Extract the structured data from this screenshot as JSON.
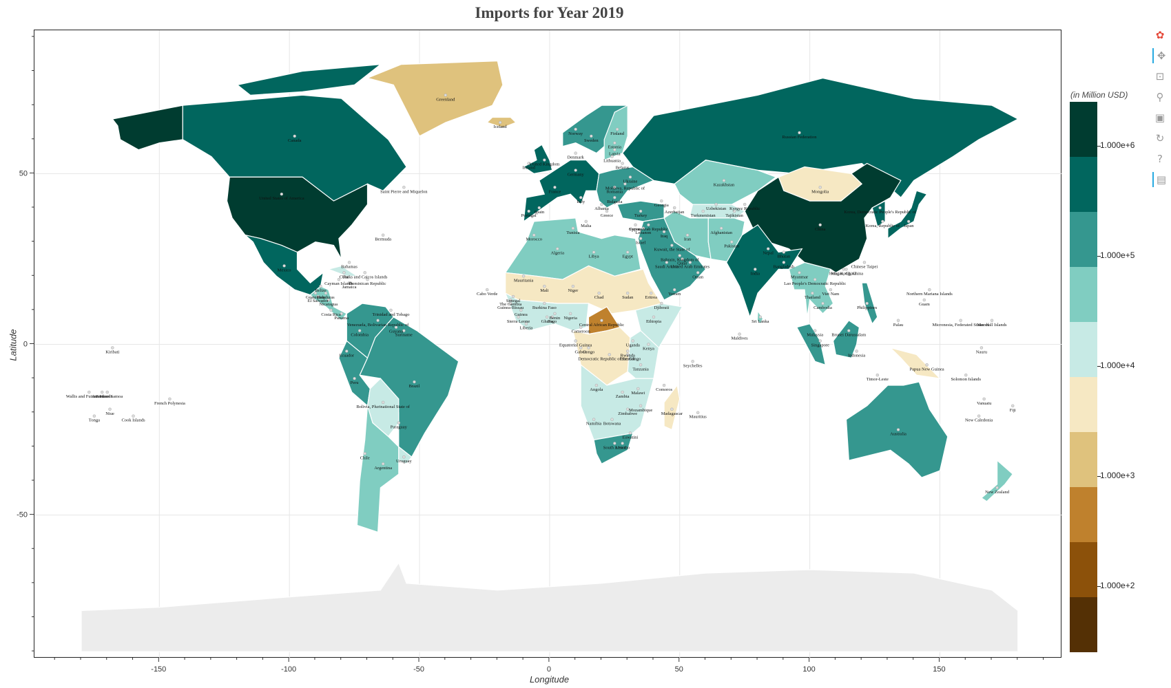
{
  "title": "Imports for Year 2019",
  "colorbar": {
    "title": "(in Million USD)",
    "colors": [
      "#003c30",
      "#01665e",
      "#35978f",
      "#80cdc1",
      "#c7eae5",
      "#f6e8c3",
      "#dfc27d",
      "#bf812d",
      "#8c510a",
      "#543005"
    ],
    "ticks": [
      "1.000e+6",
      "1.000e+5",
      "1.000e+4",
      "1.000e+3",
      "1.000e+2"
    ]
  },
  "toolbar": {
    "tools": [
      {
        "name": "bokeh-logo-icon",
        "glyph": "✿"
      },
      {
        "name": "pan-icon",
        "glyph": "✥"
      },
      {
        "name": "box-zoom-icon",
        "glyph": "⊡"
      },
      {
        "name": "wheel-zoom-icon",
        "glyph": "⚲"
      },
      {
        "name": "save-icon",
        "glyph": "▣"
      },
      {
        "name": "reset-icon",
        "glyph": "↻"
      },
      {
        "name": "help-icon",
        "glyph": "?"
      },
      {
        "name": "hover-icon",
        "glyph": "▤"
      }
    ]
  },
  "chart_data": {
    "type": "map",
    "title": "Imports for Year 2019",
    "xlabel": "Longitude",
    "ylabel": "Latitude",
    "xlim": [
      -198,
      197
    ],
    "ylim": [
      -92,
      92
    ],
    "x_ticks": [
      -150,
      -100,
      -50,
      0,
      50,
      100,
      150
    ],
    "y_ticks": [
      50,
      0,
      -50
    ],
    "x_tick_labels": [
      "-150",
      "-100",
      "-50",
      "0",
      "50",
      "100",
      "150"
    ],
    "y_tick_labels": [
      "50",
      "0",
      "-50"
    ],
    "color_scale": "log",
    "grid": true,
    "countries": [
      {
        "name": "Greenland",
        "lon": -40,
        "lat": 73,
        "bin": 6
      },
      {
        "name": "Iceland",
        "lon": -19,
        "lat": 65,
        "bin": 6
      },
      {
        "name": "Canada",
        "lon": -98,
        "lat": 61,
        "bin": 1
      },
      {
        "name": "United States of America",
        "lon": -103,
        "lat": 44,
        "bin": 0
      },
      {
        "name": "Saint Pierre and Miquelon",
        "lon": -56,
        "lat": 46,
        "bin": 5
      },
      {
        "name": "Bermuda",
        "lon": -64,
        "lat": 32,
        "bin": 5
      },
      {
        "name": "Mexico",
        "lon": -102,
        "lat": 23,
        "bin": 1
      },
      {
        "name": "Bahamas",
        "lon": -77,
        "lat": 24,
        "bin": 5
      },
      {
        "name": "Turks and Caicos Islands",
        "lon": -71,
        "lat": 21,
        "bin": 5
      },
      {
        "name": "Cuba",
        "lon": -79,
        "lat": 21,
        "bin": 4
      },
      {
        "name": "Cayman Islands",
        "lon": -81,
        "lat": 19,
        "bin": 5
      },
      {
        "name": "Jamaica",
        "lon": -77,
        "lat": 18,
        "bin": 4
      },
      {
        "name": "Dominican Republic",
        "lon": -70,
        "lat": 19,
        "bin": 3
      },
      {
        "name": "Belize",
        "lon": -88,
        "lat": 17,
        "bin": 5
      },
      {
        "name": "Guatemala",
        "lon": -90,
        "lat": 15,
        "bin": 3
      },
      {
        "name": "Honduras",
        "lon": -86,
        "lat": 15,
        "bin": 3
      },
      {
        "name": "El Salvador",
        "lon": -89,
        "lat": 14,
        "bin": 3
      },
      {
        "name": "Nicaragua",
        "lon": -85,
        "lat": 13,
        "bin": 4
      },
      {
        "name": "Costa Rica",
        "lon": -84,
        "lat": 10,
        "bin": 3
      },
      {
        "name": "Panama",
        "lon": -80,
        "lat": 9,
        "bin": 3
      },
      {
        "name": "Trinidad and Tobago",
        "lon": -61,
        "lat": 10,
        "bin": 4
      },
      {
        "name": "Venezuela, Bolivarian Republic of",
        "lon": -66,
        "lat": 7,
        "bin": 4
      },
      {
        "name": "Guyana",
        "lon": -59,
        "lat": 5,
        "bin": 5
      },
      {
        "name": "Suriname",
        "lon": -56,
        "lat": 4,
        "bin": 5
      },
      {
        "name": "Colombia",
        "lon": -73,
        "lat": 4,
        "bin": 2
      },
      {
        "name": "Ecuador",
        "lon": -78,
        "lat": -2,
        "bin": 3
      },
      {
        "name": "Peru",
        "lon": -75,
        "lat": -10,
        "bin": 2
      },
      {
        "name": "Brazil",
        "lon": -52,
        "lat": -11,
        "bin": 2
      },
      {
        "name": "Bolivia, Plurinational State of",
        "lon": -64,
        "lat": -17,
        "bin": 4
      },
      {
        "name": "Paraguay",
        "lon": -58,
        "lat": -23,
        "bin": 4
      },
      {
        "name": "Chile",
        "lon": -71,
        "lat": -32,
        "bin": 3
      },
      {
        "name": "Argentina",
        "lon": -64,
        "lat": -35,
        "bin": 3
      },
      {
        "name": "Uruguay",
        "lon": -56,
        "lat": -33,
        "bin": 4
      },
      {
        "name": "Kiribati",
        "lon": -168,
        "lat": -1,
        "bin": 5
      },
      {
        "name": "French Polynesia",
        "lon": -146,
        "lat": -16,
        "bin": 5
      },
      {
        "name": "Wallis and Futuna Islands",
        "lon": -177,
        "lat": -14,
        "bin": 5
      },
      {
        "name": "Samoa",
        "lon": -172,
        "lat": -14,
        "bin": 5
      },
      {
        "name": "American Samoa",
        "lon": -170,
        "lat": -14,
        "bin": 5
      },
      {
        "name": "Niue",
        "lon": -169,
        "lat": -19,
        "bin": 5
      },
      {
        "name": "Tonga",
        "lon": -175,
        "lat": -21,
        "bin": 5
      },
      {
        "name": "Cook Islands",
        "lon": -160,
        "lat": -21,
        "bin": 5
      },
      {
        "name": "Norway",
        "lon": 10,
        "lat": 63,
        "bin": 2
      },
      {
        "name": "Sweden",
        "lon": 16,
        "lat": 61,
        "bin": 2
      },
      {
        "name": "Finland",
        "lon": 26,
        "lat": 63,
        "bin": 2
      },
      {
        "name": "Estonia",
        "lon": 25,
        "lat": 59,
        "bin": 3
      },
      {
        "name": "Latvia",
        "lon": 25,
        "lat": 57,
        "bin": 3
      },
      {
        "name": "Lithuania",
        "lon": 24,
        "lat": 55,
        "bin": 3
      },
      {
        "name": "Belarus",
        "lon": 28,
        "lat": 53,
        "bin": 3
      },
      {
        "name": "Denmark",
        "lon": 10,
        "lat": 56,
        "bin": 2
      },
      {
        "name": "Ireland",
        "lon": -8,
        "lat": 53,
        "bin": 2
      },
      {
        "name": "United Kingdom",
        "lon": -2,
        "lat": 54,
        "bin": 1
      },
      {
        "name": "Germany",
        "lon": 10,
        "lat": 51,
        "bin": 0
      },
      {
        "name": "France",
        "lon": 2,
        "lat": 46,
        "bin": 1
      },
      {
        "name": "Spain",
        "lon": -4,
        "lat": 40,
        "bin": 1
      },
      {
        "name": "Portugal",
        "lon": -8,
        "lat": 39,
        "bin": 2
      },
      {
        "name": "Italy",
        "lon": 12,
        "lat": 43,
        "bin": 1
      },
      {
        "name": "Ukraine",
        "lon": 31,
        "lat": 49,
        "bin": 2
      },
      {
        "name": "Moldova, Republic of",
        "lon": 29,
        "lat": 47,
        "bin": 4
      },
      {
        "name": "Romania",
        "lon": 25,
        "lat": 46,
        "bin": 2
      },
      {
        "name": "Bulgaria",
        "lon": 25,
        "lat": 43,
        "bin": 3
      },
      {
        "name": "Greece",
        "lon": 22,
        "lat": 39,
        "bin": 3
      },
      {
        "name": "Turkey",
        "lon": 35,
        "lat": 39,
        "bin": 2
      },
      {
        "name": "Albania",
        "lon": 20,
        "lat": 41,
        "bin": 4
      },
      {
        "name": "Malta",
        "lon": 14,
        "lat": 36,
        "bin": 4
      },
      {
        "name": "Georgia",
        "lon": 43,
        "lat": 42,
        "bin": 4
      },
      {
        "name": "Azerbaijan",
        "lon": 48,
        "lat": 40,
        "bin": 4
      },
      {
        "name": "Cyprus",
        "lon": 33,
        "lat": 35,
        "bin": 4
      },
      {
        "name": "Syrian Arab Republic",
        "lon": 38,
        "lat": 35,
        "bin": 5
      },
      {
        "name": "Lebanon",
        "lon": 36,
        "lat": 34,
        "bin": 4
      },
      {
        "name": "Iraq",
        "lon": 44,
        "lat": 33,
        "bin": 3
      },
      {
        "name": "Israel",
        "lon": 35,
        "lat": 31,
        "bin": 3
      },
      {
        "name": "Iran",
        "lon": 53,
        "lat": 32,
        "bin": 3
      },
      {
        "name": "Kuwait, the State of",
        "lon": 47,
        "lat": 29,
        "bin": 3
      },
      {
        "name": "Saudi Arabia",
        "lon": 45,
        "lat": 24,
        "bin": 2
      },
      {
        "name": "Bahrain, Kingdom of",
        "lon": 50,
        "lat": 26,
        "bin": 3
      },
      {
        "name": "Qatar",
        "lon": 51,
        "lat": 25,
        "bin": 3
      },
      {
        "name": "United Arab Emirates",
        "lon": 54,
        "lat": 24,
        "bin": 2
      },
      {
        "name": "Oman",
        "lon": 57,
        "lat": 21,
        "bin": 3
      },
      {
        "name": "Yemen",
        "lon": 48,
        "lat": 16,
        "bin": 4
      },
      {
        "name": "Russian Federation",
        "lon": 96,
        "lat": 62,
        "bin": 1
      },
      {
        "name": "Kazakhstan",
        "lon": 67,
        "lat": 48,
        "bin": 3
      },
      {
        "name": "Mongolia",
        "lon": 104,
        "lat": 46,
        "bin": 5
      },
      {
        "name": "Uzbekistan",
        "lon": 64,
        "lat": 41,
        "bin": 4
      },
      {
        "name": "Turkmenistan",
        "lon": 59,
        "lat": 39,
        "bin": 5
      },
      {
        "name": "Kyrgyz Republic",
        "lon": 75,
        "lat": 41,
        "bin": 5
      },
      {
        "name": "Tajikistan",
        "lon": 71,
        "lat": 39,
        "bin": 5
      },
      {
        "name": "Afghanistan",
        "lon": 66,
        "lat": 34,
        "bin": 4
      },
      {
        "name": "Pakistan",
        "lon": 70,
        "lat": 30,
        "bin": 3
      },
      {
        "name": "India",
        "lon": 79,
        "lat": 22,
        "bin": 1
      },
      {
        "name": "Nepal",
        "lon": 84,
        "lat": 28,
        "bin": 4
      },
      {
        "name": "Bhutan",
        "lon": 90,
        "lat": 27,
        "bin": 5
      },
      {
        "name": "Bangladesh",
        "lon": 90,
        "lat": 24,
        "bin": 3
      },
      {
        "name": "Sri Lanka",
        "lon": 81,
        "lat": 8,
        "bin": 3
      },
      {
        "name": "Maldives",
        "lon": 73,
        "lat": 3,
        "bin": 4
      },
      {
        "name": "China",
        "lon": 104,
        "lat": 35,
        "bin": 0
      },
      {
        "name": "Korea, Democratic People's Republic of",
        "lon": 127,
        "lat": 40,
        "bin": 5
      },
      {
        "name": "Korea, Republic of",
        "lon": 128,
        "lat": 36,
        "bin": 1
      },
      {
        "name": "Japan",
        "lon": 138,
        "lat": 36,
        "bin": 1
      },
      {
        "name": "Chinese Taipei",
        "lon": 121,
        "lat": 24,
        "bin": 2
      },
      {
        "name": "Hong Kong, China",
        "lon": 114,
        "lat": 22,
        "bin": 1
      },
      {
        "name": "Macao, China",
        "lon": 113,
        "lat": 22,
        "bin": 3
      },
      {
        "name": "Myanmar",
        "lon": 96,
        "lat": 21,
        "bin": 3
      },
      {
        "name": "Lao People's Democratic Republic",
        "lon": 102,
        "lat": 19,
        "bin": 4
      },
      {
        "name": "Thailand",
        "lon": 101,
        "lat": 15,
        "bin": 2
      },
      {
        "name": "Viet Nam",
        "lon": 108,
        "lat": 16,
        "bin": 1
      },
      {
        "name": "Cambodia",
        "lon": 105,
        "lat": 12,
        "bin": 3
      },
      {
        "name": "Philippines",
        "lon": 122,
        "lat": 12,
        "bin": 2
      },
      {
        "name": "Malaysia",
        "lon": 102,
        "lat": 4,
        "bin": 2
      },
      {
        "name": "Singapore",
        "lon": 104,
        "lat": 1,
        "bin": 1
      },
      {
        "name": "Brunei Darussalam",
        "lon": 115,
        "lat": 4,
        "bin": 4
      },
      {
        "name": "Indonesia",
        "lon": 118,
        "lat": -2,
        "bin": 2
      },
      {
        "name": "Timor-Leste",
        "lon": 126,
        "lat": -9,
        "bin": 5
      },
      {
        "name": "Papua New Guinea",
        "lon": 145,
        "lat": -6,
        "bin": 5
      },
      {
        "name": "Northern Mariana Islands",
        "lon": 146,
        "lat": 16,
        "bin": 5
      },
      {
        "name": "Guam",
        "lon": 144,
        "lat": 13,
        "bin": 5
      },
      {
        "name": "Palau",
        "lon": 134,
        "lat": 7,
        "bin": 5
      },
      {
        "name": "Micronesia, Federated States of",
        "lon": 158,
        "lat": 7,
        "bin": 5
      },
      {
        "name": "Marshall Islands",
        "lon": 170,
        "lat": 7,
        "bin": 4
      },
      {
        "name": "Nauru",
        "lon": 166,
        "lat": -1,
        "bin": 5
      },
      {
        "name": "Solomon Islands",
        "lon": 160,
        "lat": -9,
        "bin": 5
      },
      {
        "name": "Vanuatu",
        "lon": 167,
        "lat": -16,
        "bin": 5
      },
      {
        "name": "Fiji",
        "lon": 178,
        "lat": -18,
        "bin": 4
      },
      {
        "name": "New Caledonia",
        "lon": 165,
        "lat": -21,
        "bin": 4
      },
      {
        "name": "Australia",
        "lon": 134,
        "lat": -25,
        "bin": 2
      },
      {
        "name": "New Zealand",
        "lon": 172,
        "lat": -42,
        "bin": 3
      },
      {
        "name": "Seychelles",
        "lon": 55,
        "lat": -5,
        "bin": 5
      },
      {
        "name": "Mauritius",
        "lon": 57,
        "lat": -20,
        "bin": 4
      },
      {
        "name": "Madagascar",
        "lon": 47,
        "lat": -19,
        "bin": 5
      },
      {
        "name": "Comoros",
        "lon": 44,
        "lat": -12,
        "bin": 5
      },
      {
        "name": "Morocco",
        "lon": -6,
        "lat": 32,
        "bin": 3
      },
      {
        "name": "Algeria",
        "lon": 3,
        "lat": 28,
        "bin": 3
      },
      {
        "name": "Tunisia",
        "lon": 9,
        "lat": 34,
        "bin": 3
      },
      {
        "name": "Libya",
        "lon": 17,
        "lat": 27,
        "bin": 4
      },
      {
        "name": "Egypt",
        "lon": 30,
        "lat": 27,
        "bin": 3
      },
      {
        "name": "Mauritania",
        "lon": -10,
        "lat": 20,
        "bin": 5
      },
      {
        "name": "Mali",
        "lon": -2,
        "lat": 17,
        "bin": 5
      },
      {
        "name": "Niger",
        "lon": 9,
        "lat": 17,
        "bin": 5
      },
      {
        "name": "Chad",
        "lon": 19,
        "lat": 15,
        "bin": 5
      },
      {
        "name": "Sudan",
        "lon": 30,
        "lat": 15,
        "bin": 5
      },
      {
        "name": "Eritrea",
        "lon": 39,
        "lat": 15,
        "bin": 5
      },
      {
        "name": "Djibouti",
        "lon": 43,
        "lat": 12,
        "bin": 4
      },
      {
        "name": "Ethiopia",
        "lon": 40,
        "lat": 8,
        "bin": 4
      },
      {
        "name": "Cabo Verde",
        "lon": -24,
        "lat": 16,
        "bin": 5
      },
      {
        "name": "Senegal",
        "lon": -14,
        "lat": 14,
        "bin": 4
      },
      {
        "name": "The Gambia",
        "lon": -15,
        "lat": 13,
        "bin": 5
      },
      {
        "name": "Guinea-Bissau",
        "lon": -15,
        "lat": 12,
        "bin": 5
      },
      {
        "name": "Guinea",
        "lon": -11,
        "lat": 10,
        "bin": 4
      },
      {
        "name": "Sierra Leone",
        "lon": -12,
        "lat": 8,
        "bin": 5
      },
      {
        "name": "Liberia",
        "lon": -9,
        "lat": 6,
        "bin": 5
      },
      {
        "name": "Burkina Faso",
        "lon": -2,
        "lat": 12,
        "bin": 4
      },
      {
        "name": "Ghana",
        "lon": -1,
        "lat": 8,
        "bin": 3
      },
      {
        "name": "Togo",
        "lon": 1,
        "lat": 8,
        "bin": 4
      },
      {
        "name": "Benin",
        "lon": 2,
        "lat": 9,
        "bin": 4
      },
      {
        "name": "Nigeria",
        "lon": 8,
        "lat": 9,
        "bin": 2
      },
      {
        "name": "Cameroon",
        "lon": 12,
        "lat": 5,
        "bin": 4
      },
      {
        "name": "Central African Republic",
        "lon": 20,
        "lat": 7,
        "bin": 7
      },
      {
        "name": "Equatorial Guinea",
        "lon": 10,
        "lat": 1,
        "bin": 5
      },
      {
        "name": "Gabon",
        "lon": 12,
        "lat": -1,
        "bin": 5
      },
      {
        "name": "Congo",
        "lon": 15,
        "lat": -1,
        "bin": 5
      },
      {
        "name": "Democratic Republic of the Congo",
        "lon": 23,
        "lat": -3,
        "bin": 5
      },
      {
        "name": "Uganda",
        "lon": 32,
        "lat": 1,
        "bin": 4
      },
      {
        "name": "Kenya",
        "lon": 38,
        "lat": 0,
        "bin": 3
      },
      {
        "name": "Rwanda",
        "lon": 30,
        "lat": -2,
        "bin": 5
      },
      {
        "name": "Burundi",
        "lon": 30,
        "lat": -3,
        "bin": 5
      },
      {
        "name": "Tanzania",
        "lon": 35,
        "lat": -6,
        "bin": 4
      },
      {
        "name": "Angola",
        "lon": 18,
        "lat": -12,
        "bin": 4
      },
      {
        "name": "Zambia",
        "lon": 28,
        "lat": -14,
        "bin": 4
      },
      {
        "name": "Malawi",
        "lon": 34,
        "lat": -13,
        "bin": 5
      },
      {
        "name": "Mozambique",
        "lon": 35,
        "lat": -18,
        "bin": 4
      },
      {
        "name": "Zimbabwe",
        "lon": 30,
        "lat": -19,
        "bin": 4
      },
      {
        "name": "Namibia",
        "lon": 17,
        "lat": -22,
        "bin": 4
      },
      {
        "name": "Botswana",
        "lon": 24,
        "lat": -22,
        "bin": 4
      },
      {
        "name": "South Africa",
        "lon": 25,
        "lat": -29,
        "bin": 2
      },
      {
        "name": "Eswatini",
        "lon": 31,
        "lat": -26,
        "bin": 5
      },
      {
        "name": "Lesotho",
        "lon": 28,
        "lat": -29,
        "bin": 5
      }
    ]
  }
}
